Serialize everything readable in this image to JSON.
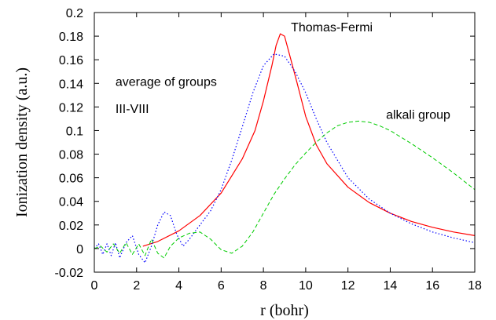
{
  "chart_data": {
    "type": "line",
    "title": "",
    "xlabel": "r (bohr)",
    "ylabel": "Ionization density (a.u.)",
    "xlim": [
      0,
      18
    ],
    "ylim": [
      -0.02,
      0.2
    ],
    "x_ticks": [
      0,
      2,
      4,
      6,
      8,
      10,
      12,
      14,
      16,
      18
    ],
    "x_tick_labels": [
      "0",
      "2",
      "4",
      "6",
      "8",
      "10",
      "12",
      "14",
      "16",
      "18"
    ],
    "y_ticks": [
      -0.02,
      0,
      0.02,
      0.04,
      0.06,
      0.08,
      0.1,
      0.12,
      0.14,
      0.16,
      0.18,
      0.2
    ],
    "y_tick_labels": [
      "-0.02",
      "0",
      "0.02",
      "0.04",
      "0.06",
      "0.08",
      "0.1",
      "0.12",
      "0.14",
      "0.16",
      "0.18",
      "0.2"
    ],
    "grid": false,
    "legend": "none (curves labeled by annotations)",
    "series": [
      {
        "name": "Thomas-Fermi",
        "color": "#ff0000",
        "style": "solid",
        "points": [
          [
            2.3,
            0.002
          ],
          [
            3.0,
            0.006
          ],
          [
            4.0,
            0.015
          ],
          [
            5.0,
            0.028
          ],
          [
            6.0,
            0.047
          ],
          [
            7.0,
            0.076
          ],
          [
            7.6,
            0.1
          ],
          [
            8.0,
            0.125
          ],
          [
            8.4,
            0.155
          ],
          [
            8.6,
            0.172
          ],
          [
            8.8,
            0.182
          ],
          [
            9.0,
            0.18
          ],
          [
            9.3,
            0.16
          ],
          [
            9.6,
            0.14
          ],
          [
            10.0,
            0.112
          ],
          [
            10.5,
            0.088
          ],
          [
            11.0,
            0.072
          ],
          [
            12.0,
            0.052
          ],
          [
            13.0,
            0.039
          ],
          [
            14.0,
            0.03
          ],
          [
            15.0,
            0.023
          ],
          [
            16.0,
            0.018
          ],
          [
            17.0,
            0.014
          ],
          [
            18.0,
            0.011
          ]
        ]
      },
      {
        "name": "average of groups III-VIII",
        "color": "#0000ff",
        "style": "dotted",
        "points": [
          [
            0.0,
            0.0
          ],
          [
            0.2,
            0.004
          ],
          [
            0.4,
            -0.005
          ],
          [
            0.6,
            0.004
          ],
          [
            0.8,
            -0.006
          ],
          [
            1.0,
            0.005
          ],
          [
            1.2,
            -0.008
          ],
          [
            1.5,
            0.005
          ],
          [
            1.8,
            0.011
          ],
          [
            2.1,
            -0.005
          ],
          [
            2.4,
            -0.012
          ],
          [
            2.7,
            0.002
          ],
          [
            3.0,
            0.02
          ],
          [
            3.3,
            0.031
          ],
          [
            3.6,
            0.028
          ],
          [
            3.9,
            0.012
          ],
          [
            4.2,
            0.002
          ],
          [
            4.5,
            0.008
          ],
          [
            5.0,
            0.02
          ],
          [
            5.5,
            0.032
          ],
          [
            6.0,
            0.05
          ],
          [
            6.5,
            0.075
          ],
          [
            7.0,
            0.103
          ],
          [
            7.5,
            0.132
          ],
          [
            8.0,
            0.155
          ],
          [
            8.5,
            0.165
          ],
          [
            9.0,
            0.163
          ],
          [
            9.5,
            0.15
          ],
          [
            10.0,
            0.132
          ],
          [
            10.5,
            0.11
          ],
          [
            11.0,
            0.09
          ],
          [
            12.0,
            0.06
          ],
          [
            13.0,
            0.042
          ],
          [
            14.0,
            0.03
          ],
          [
            15.0,
            0.021
          ],
          [
            16.0,
            0.014
          ],
          [
            17.0,
            0.009
          ],
          [
            18.0,
            0.005
          ]
        ]
      },
      {
        "name": "alkali group",
        "color": "#00cc00",
        "style": "dashed",
        "points": [
          [
            0.0,
            0.0
          ],
          [
            0.3,
            0.002
          ],
          [
            0.6,
            -0.003
          ],
          [
            0.9,
            0.004
          ],
          [
            1.2,
            -0.004
          ],
          [
            1.5,
            0.005
          ],
          [
            1.8,
            -0.005
          ],
          [
            2.1,
            0.004
          ],
          [
            2.4,
            -0.006
          ],
          [
            2.7,
            0.008
          ],
          [
            3.0,
            -0.004
          ],
          [
            3.3,
            -0.008
          ],
          [
            3.6,
            0.002
          ],
          [
            4.0,
            0.009
          ],
          [
            4.5,
            0.013
          ],
          [
            5.0,
            0.014
          ],
          [
            5.5,
            0.008
          ],
          [
            6.0,
            -0.001
          ],
          [
            6.5,
            -0.004
          ],
          [
            7.0,
            0.002
          ],
          [
            7.5,
            0.014
          ],
          [
            8.0,
            0.03
          ],
          [
            8.5,
            0.046
          ],
          [
            9.0,
            0.059
          ],
          [
            9.5,
            0.071
          ],
          [
            10.0,
            0.081
          ],
          [
            10.5,
            0.09
          ],
          [
            11.0,
            0.098
          ],
          [
            11.5,
            0.104
          ],
          [
            12.0,
            0.107
          ],
          [
            12.5,
            0.108
          ],
          [
            13.0,
            0.107
          ],
          [
            13.5,
            0.104
          ],
          [
            14.0,
            0.1
          ],
          [
            15.0,
            0.089
          ],
          [
            16.0,
            0.077
          ],
          [
            17.0,
            0.064
          ],
          [
            18.0,
            0.05
          ]
        ]
      }
    ],
    "annotations": [
      {
        "text": "Thomas-Fermi",
        "x": 9.3,
        "y": 0.184
      },
      {
        "text": "average of groups",
        "x": 1.0,
        "y": 0.138
      },
      {
        "text": "III-VIII",
        "x": 1.0,
        "y": 0.115
      },
      {
        "text": "alkali group",
        "x": 13.8,
        "y": 0.11
      }
    ]
  }
}
